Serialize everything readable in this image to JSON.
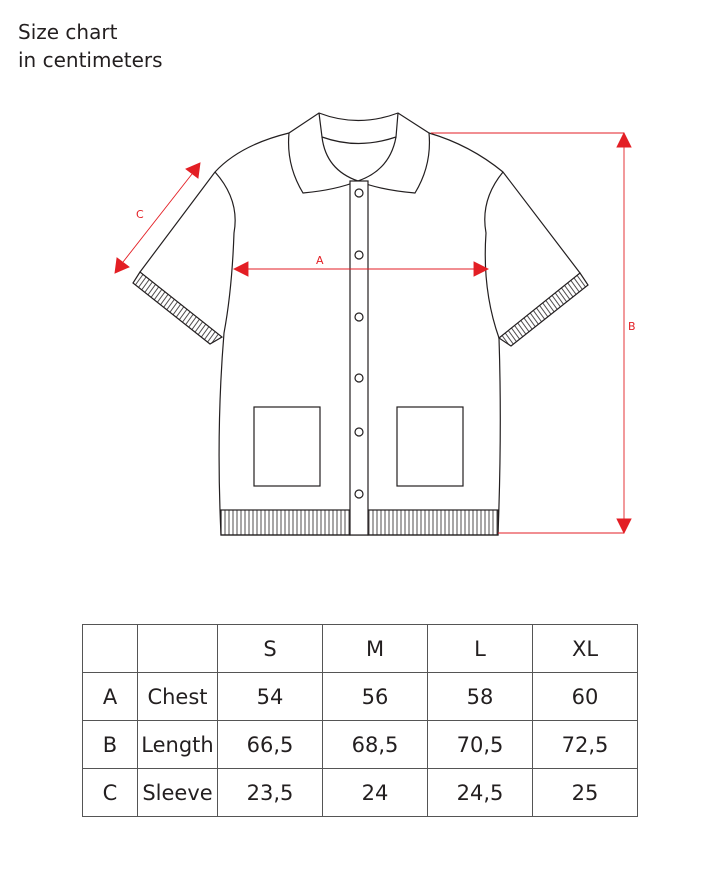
{
  "title": {
    "line1": "Size chart",
    "line2": "in centimeters"
  },
  "diagram": {
    "labels": {
      "a": "A",
      "b": "B",
      "c": "C"
    },
    "colors": {
      "measure": "#e31e24",
      "outline": "#231f20"
    }
  },
  "table": {
    "headers": [
      "",
      "",
      "S",
      "M",
      "L",
      "XL"
    ],
    "rows": [
      {
        "code": "A",
        "name": "Chest",
        "values": [
          "54",
          "56",
          "58",
          "60"
        ]
      },
      {
        "code": "B",
        "name": "Length",
        "values": [
          "66,5",
          "68,5",
          "70,5",
          "72,5"
        ]
      },
      {
        "code": "C",
        "name": "Sleeve",
        "values": [
          "23,5",
          "24",
          "24,5",
          "25"
        ]
      }
    ]
  }
}
